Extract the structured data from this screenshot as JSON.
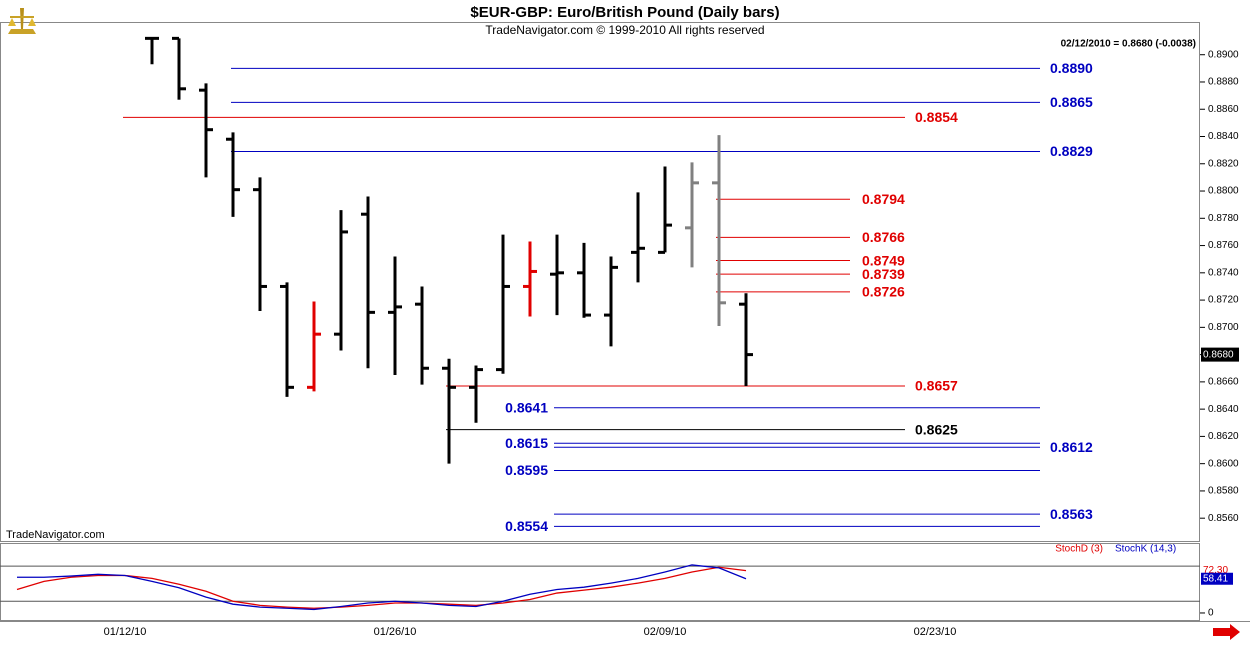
{
  "chart_data": [
    {
      "type": "ohlc",
      "title": "$EUR-GBP:  Euro/British Pound  (Daily bars)",
      "subtitle": "TradeNavigator.com © 1999-2010 All rights reserved",
      "annotation": "02/12/2010 = 0.8680 (-0.0038)",
      "watermark": "TradeNavigator.com",
      "categories": [
        null,
        null,
        null,
        null,
        "01/12/10",
        null,
        null,
        null,
        null,
        null,
        null,
        null,
        null,
        null,
        "01/26/10",
        null,
        null,
        null,
        null,
        null,
        null,
        null,
        null,
        null,
        "02/09/10",
        null,
        null,
        null,
        null,
        null,
        null,
        null,
        null,
        null,
        "02/23/10"
      ],
      "open": [
        null,
        null,
        null,
        null,
        null,
        0.8912,
        0.8912,
        0.8874,
        0.8838,
        0.8801,
        0.873,
        0.8656,
        0.8695,
        0.8783,
        0.8711,
        0.8717,
        0.867,
        0.8656,
        0.8669,
        0.873,
        0.8739,
        0.874,
        0.8709,
        0.8755,
        0.8755,
        0.8773,
        0.8806,
        0.8717,
        null,
        null,
        null,
        null,
        null,
        null,
        null
      ],
      "high": [
        null,
        null,
        null,
        null,
        null,
        0.8913,
        0.8912,
        0.8879,
        0.8843,
        0.881,
        0.8733,
        0.8719,
        0.8786,
        0.8796,
        0.8752,
        0.873,
        0.8677,
        0.8672,
        0.8768,
        0.8763,
        0.8768,
        0.8762,
        0.8752,
        0.8799,
        0.8818,
        0.8821,
        0.8841,
        0.8725,
        null,
        null,
        null,
        null,
        null,
        null,
        null
      ],
      "low": [
        null,
        null,
        null,
        null,
        null,
        0.8893,
        0.8867,
        0.881,
        0.8781,
        0.8712,
        0.8649,
        0.8653,
        0.8683,
        0.867,
        0.8665,
        0.8658,
        0.86,
        0.863,
        0.8666,
        0.8708,
        0.8709,
        0.8707,
        0.8686,
        0.8733,
        0.8755,
        0.8744,
        0.8701,
        0.8657,
        null,
        null,
        null,
        null,
        null,
        null,
        null
      ],
      "close": [
        null,
        null,
        null,
        null,
        null,
        0.8912,
        0.8875,
        0.8845,
        0.8801,
        0.873,
        0.8656,
        0.8695,
        0.877,
        0.8711,
        0.8715,
        0.867,
        0.8656,
        0.8669,
        0.873,
        0.8741,
        0.874,
        0.8709,
        0.8744,
        0.8758,
        0.8775,
        0.8806,
        0.8718,
        0.868,
        null,
        null,
        null,
        null,
        null,
        null,
        null
      ],
      "close_labels": [
        null,
        null,
        null,
        null,
        null,
        null,
        null,
        null,
        null,
        null,
        null,
        null,
        null,
        null,
        null,
        null,
        null,
        null,
        null,
        null,
        null,
        null,
        null,
        null,
        null,
        null,
        null,
        "0.8680",
        null,
        null,
        null,
        null,
        null,
        null,
        null
      ],
      "colors": [
        null,
        null,
        null,
        null,
        null,
        "#000000",
        "#000000",
        "#000000",
        "#000000",
        "#000000",
        "#000000",
        "#e00000",
        "#000000",
        "#000000",
        "#000000",
        "#000000",
        "#000000",
        "#000000",
        "#000000",
        "#e00000",
        "#000000",
        "#000000",
        "#000000",
        "#000000",
        "#000000",
        "#808080",
        "#808080",
        "#000000",
        null,
        null,
        null,
        null,
        null,
        null,
        null
      ],
      "ylim": [
        0.8544,
        0.8924
      ],
      "yticks": [
        {
          "value": 0.89,
          "label": "0.8900"
        },
        {
          "value": 0.888,
          "label": "0.8880"
        },
        {
          "value": 0.886,
          "label": "0.8860"
        },
        {
          "value": 0.884,
          "label": "0.8840"
        },
        {
          "value": 0.882,
          "label": "0.8820"
        },
        {
          "value": 0.88,
          "label": "0.8800"
        },
        {
          "value": 0.878,
          "label": "0.8780"
        },
        {
          "value": 0.876,
          "label": "0.8760"
        },
        {
          "value": 0.874,
          "label": "0.8740"
        },
        {
          "value": 0.872,
          "label": "0.8720"
        },
        {
          "value": 0.87,
          "label": "0.8700"
        },
        {
          "value": 0.868,
          "label": "0.8680"
        },
        {
          "value": 0.866,
          "label": "0.8660"
        },
        {
          "value": 0.864,
          "label": "0.8640"
        },
        {
          "value": 0.862,
          "label": "0.8620"
        },
        {
          "value": 0.86,
          "label": "0.8600"
        },
        {
          "value": 0.858,
          "label": "0.8580"
        },
        {
          "value": 0.856,
          "label": "0.8560"
        }
      ],
      "levels": {
        "values": [
          0.889,
          0.8865,
          0.8854,
          0.8829,
          0.8794,
          0.8766,
          0.8749,
          0.8739,
          0.8726,
          0.8657,
          0.8641,
          0.8625,
          0.8615,
          0.8612,
          0.8595,
          0.8563,
          0.8554
        ],
        "value_labels": [
          "0.8890",
          "0.8865",
          "0.8854",
          "0.8829",
          "0.8794",
          "0.8766",
          "0.8749",
          "0.8739",
          "0.8726",
          "0.8657",
          "0.8641",
          "0.8625",
          "0.8615",
          "0.8612",
          "0.8595",
          "0.8563",
          "0.8554"
        ],
        "colors": [
          "#0000c0",
          "#0000c0",
          "#e00000",
          "#0000c0",
          "#e00000",
          "#e00000",
          "#e00000",
          "#e00000",
          "#e00000",
          "#e00000",
          "#0000c0",
          "#000000",
          "#0000c0",
          "#0000c0",
          "#0000c0",
          "#0000c0",
          "#0000c0"
        ]
      }
    },
    {
      "type": "line",
      "series": [
        {
          "name": "StochD (3)",
          "color": "#e00000",
          "values": [
            40,
            54,
            61,
            64,
            64,
            59,
            49,
            37,
            20,
            13,
            10,
            8,
            10,
            13,
            17,
            17,
            15,
            13,
            17,
            23,
            34,
            39,
            44,
            51,
            59,
            70,
            78,
            72.3,
            null,
            null,
            null,
            null,
            null,
            null,
            null
          ],
          "value_labels": [
            null,
            null,
            null,
            null,
            null,
            null,
            null,
            null,
            null,
            null,
            null,
            null,
            null,
            null,
            null,
            null,
            null,
            null,
            null,
            null,
            null,
            null,
            null,
            null,
            null,
            null,
            null,
            "72.30",
            null,
            null,
            null,
            null,
            null,
            null,
            null
          ]
        },
        {
          "name": "StochK (14,3)",
          "color": "#0000c0",
          "values": [
            61,
            61,
            63,
            66,
            64,
            54,
            43,
            27,
            15,
            10,
            8,
            6,
            11,
            17,
            20,
            17,
            13,
            11,
            20,
            32,
            40,
            44,
            51,
            59,
            70,
            82,
            77,
            58.41,
            null,
            null,
            null,
            null,
            null,
            null,
            null
          ],
          "value_labels": [
            null,
            null,
            null,
            null,
            null,
            null,
            null,
            null,
            null,
            null,
            null,
            null,
            null,
            null,
            null,
            null,
            null,
            null,
            null,
            null,
            null,
            null,
            null,
            null,
            null,
            null,
            null,
            "58.41",
            null,
            null,
            null,
            null,
            null,
            null,
            null
          ]
        }
      ],
      "ylim": [
        -12,
        116
      ],
      "yticks": [
        0
      ],
      "ref_lines": [
        20,
        80
      ]
    }
  ]
}
